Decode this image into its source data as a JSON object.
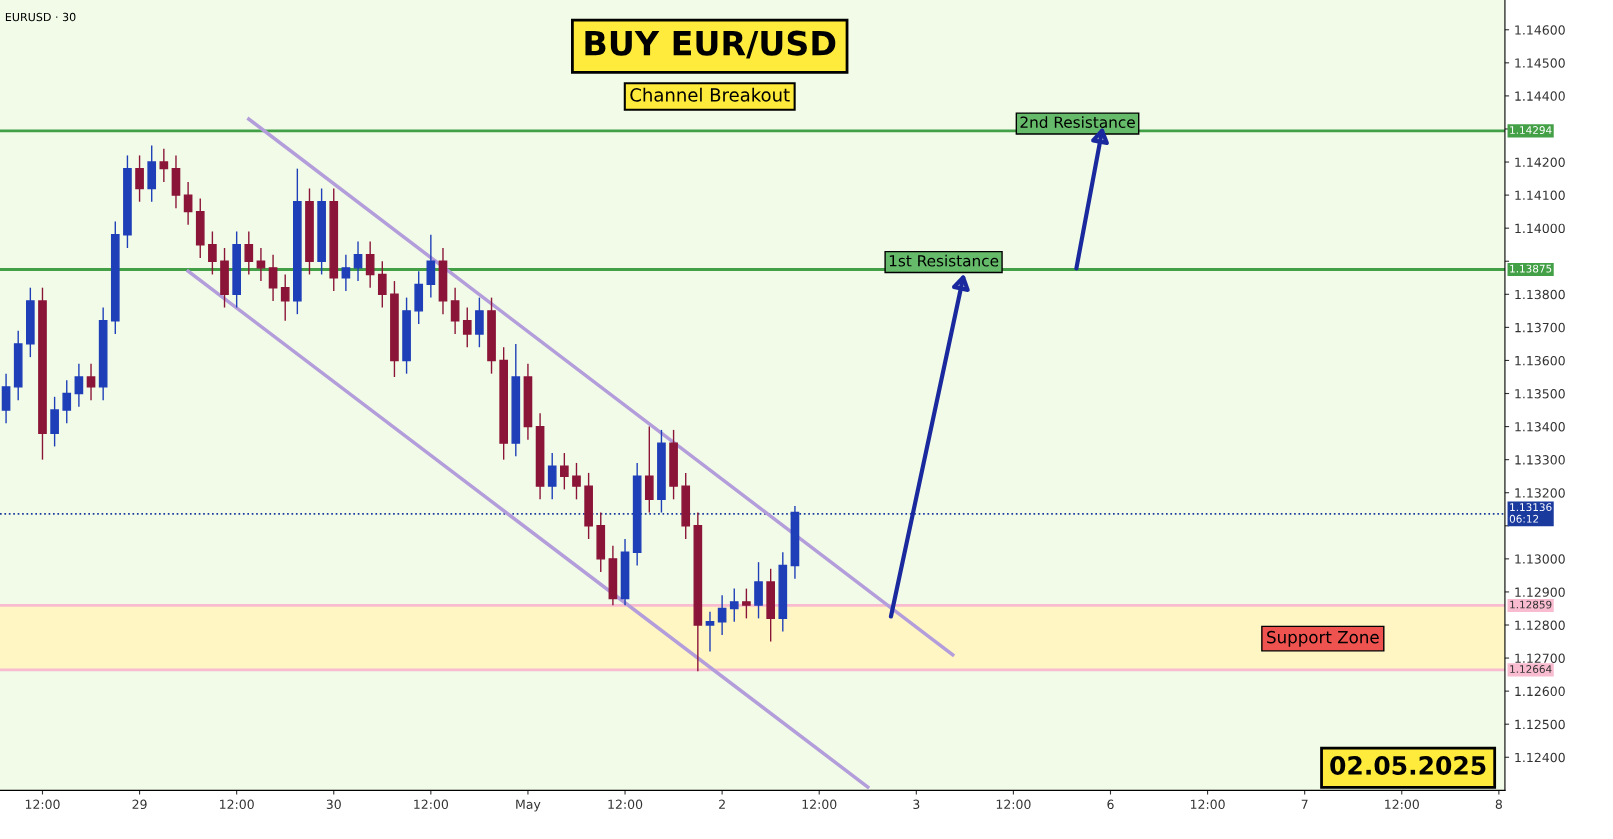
{
  "chart_data": {
    "type": "candlestick",
    "title": "BUY EUR/USD",
    "subtitle": "Channel Breakout",
    "categories": [
      null,
      null,
      null,
      "12:00",
      null,
      null,
      null,
      null,
      null,
      null,
      null,
      "29",
      null,
      null,
      null,
      null,
      null,
      null,
      null,
      "12:00",
      null,
      null,
      null,
      null,
      null,
      null,
      null,
      "30",
      null,
      null,
      null,
      null,
      null,
      null,
      null,
      "12:00",
      null,
      null,
      null,
      null,
      null,
      null,
      null,
      "May",
      null,
      null,
      null,
      null,
      null,
      null,
      null,
      "12:00",
      null,
      null,
      null,
      null,
      null,
      null,
      null,
      "2",
      null,
      null,
      null,
      null,
      null,
      null,
      null,
      "12:00",
      null,
      null,
      null,
      null,
      null,
      null,
      null,
      "3",
      null,
      null,
      null,
      null,
      null,
      null,
      null,
      "12:00",
      null,
      null,
      null,
      null,
      null,
      null,
      null,
      "6",
      null,
      null,
      null,
      null,
      null,
      null,
      null,
      "12:00",
      null,
      null,
      null,
      null,
      null,
      null,
      null,
      "7",
      null,
      null,
      null,
      null,
      null,
      null,
      null,
      "12:00",
      null,
      null,
      null,
      null,
      null,
      null,
      null,
      "8"
    ],
    "ohlc": [
      [
        1.1345,
        1.1356,
        1.1341,
        1.1352
      ],
      [
        1.1352,
        1.1369,
        1.1348,
        1.1365
      ],
      [
        1.1365,
        1.1382,
        1.1361,
        1.1378
      ],
      [
        1.1378,
        1.1382,
        1.133,
        1.1338
      ],
      [
        1.1338,
        1.1349,
        1.1334,
        1.1345
      ],
      [
        1.1345,
        1.1354,
        1.1341,
        1.135
      ],
      [
        1.135,
        1.1359,
        1.1346,
        1.1355
      ],
      [
        1.1355,
        1.1359,
        1.1348,
        1.1352
      ],
      [
        1.1352,
        1.1376,
        1.1348,
        1.1372
      ],
      [
        1.1372,
        1.1402,
        1.1368,
        1.1398
      ],
      [
        1.1398,
        1.1422,
        1.1394,
        1.1418
      ],
      [
        1.1418,
        1.1422,
        1.1408,
        1.1412
      ],
      [
        1.1412,
        1.1425,
        1.1408,
        1.142
      ],
      [
        1.142,
        1.1424,
        1.1414,
        1.1418
      ],
      [
        1.1418,
        1.1422,
        1.1406,
        1.141
      ],
      [
        1.141,
        1.1414,
        1.1401,
        1.1405
      ],
      [
        1.1405,
        1.1409,
        1.1391,
        1.1395
      ],
      [
        1.1395,
        1.1399,
        1.1386,
        1.139
      ],
      [
        1.139,
        1.1394,
        1.1376,
        1.138
      ],
      [
        1.138,
        1.1399,
        1.1376,
        1.1395
      ],
      [
        1.1395,
        1.1399,
        1.1386,
        1.139
      ],
      [
        1.139,
        1.1394,
        1.1384,
        1.1388
      ],
      [
        1.1388,
        1.1392,
        1.1378,
        1.1382
      ],
      [
        1.1382,
        1.1386,
        1.1372,
        1.1378
      ],
      [
        1.1378,
        1.1418,
        1.1374,
        1.1408
      ],
      [
        1.1408,
        1.1412,
        1.1386,
        1.139
      ],
      [
        1.139,
        1.1412,
        1.1386,
        1.1408
      ],
      [
        1.1408,
        1.1412,
        1.1381,
        1.1385
      ],
      [
        1.1385,
        1.1392,
        1.1381,
        1.1388
      ],
      [
        1.1388,
        1.1396,
        1.1384,
        1.1392
      ],
      [
        1.1392,
        1.1396,
        1.1382,
        1.1386
      ],
      [
        1.1386,
        1.139,
        1.1376,
        1.138
      ],
      [
        1.138,
        1.1384,
        1.1355,
        1.136
      ],
      [
        1.136,
        1.1379,
        1.1356,
        1.1375
      ],
      [
        1.1375,
        1.1387,
        1.1371,
        1.1383
      ],
      [
        1.1383,
        1.1398,
        1.1379,
        1.139
      ],
      [
        1.139,
        1.1394,
        1.1374,
        1.1378
      ],
      [
        1.1378,
        1.1382,
        1.1368,
        1.1372
      ],
      [
        1.1372,
        1.1376,
        1.1364,
        1.1368
      ],
      [
        1.1368,
        1.1379,
        1.1364,
        1.1375
      ],
      [
        1.1375,
        1.1379,
        1.1356,
        1.136
      ],
      [
        1.136,
        1.1364,
        1.133,
        1.1335
      ],
      [
        1.1335,
        1.1365,
        1.1331,
        1.1355
      ],
      [
        1.1355,
        1.1359,
        1.1336,
        1.134
      ],
      [
        1.134,
        1.1344,
        1.1318,
        1.1322
      ],
      [
        1.1322,
        1.1332,
        1.1318,
        1.1328
      ],
      [
        1.1328,
        1.1332,
        1.1321,
        1.1325
      ],
      [
        1.1325,
        1.1329,
        1.1318,
        1.1322
      ],
      [
        1.1322,
        1.1326,
        1.1306,
        1.131
      ],
      [
        1.131,
        1.1314,
        1.1296,
        1.13
      ],
      [
        1.13,
        1.1304,
        1.1286,
        1.1288
      ],
      [
        1.1288,
        1.1306,
        1.1286,
        1.1302
      ],
      [
        1.1302,
        1.1329,
        1.1298,
        1.1325
      ],
      [
        1.1325,
        1.134,
        1.1314,
        1.1318
      ],
      [
        1.1318,
        1.1339,
        1.1314,
        1.1335
      ],
      [
        1.1335,
        1.1339,
        1.1318,
        1.1322
      ],
      [
        1.1322,
        1.1326,
        1.1306,
        1.131
      ],
      [
        1.131,
        1.1314,
        1.1266,
        1.128
      ],
      [
        1.128,
        1.1284,
        1.1272,
        1.1281
      ],
      [
        1.1281,
        1.1289,
        1.1277,
        1.1285
      ],
      [
        1.1285,
        1.1291,
        1.1281,
        1.1287
      ],
      [
        1.1287,
        1.1291,
        1.1282,
        1.1286
      ],
      [
        1.1286,
        1.1299,
        1.1282,
        1.1293
      ],
      [
        1.1293,
        1.1297,
        1.1275,
        1.1282
      ],
      [
        1.1282,
        1.1302,
        1.1278,
        1.1298
      ],
      [
        1.1298,
        1.1316,
        1.1294,
        1.1314
      ],
      null,
      null,
      null,
      null,
      null,
      null,
      null,
      null,
      null,
      null,
      null,
      null,
      null,
      null,
      null,
      null,
      null,
      null,
      null,
      null,
      null,
      null,
      null,
      null,
      null,
      null,
      null,
      null,
      null,
      null,
      null,
      null,
      null,
      null,
      null,
      null,
      null,
      null,
      null,
      null,
      null,
      null,
      null,
      null,
      null,
      null,
      null,
      null,
      null,
      null,
      null,
      null,
      null,
      null,
      null,
      null,
      null,
      null
    ],
    "series": [
      {
        "type": "line",
        "color": "#b39ddb",
        "values": [
          null,
          null,
          null,
          null,
          null,
          null,
          null,
          null,
          null,
          null,
          null,
          null,
          null,
          null,
          null,
          null,
          null,
          null,
          null,
          null,
          1.1433,
          null,
          null,
          null,
          null,
          null,
          null,
          null,
          null,
          null,
          null,
          null,
          null,
          null,
          null,
          null,
          null,
          null,
          null,
          null,
          null,
          null,
          null,
          null,
          null,
          null,
          null,
          null,
          null,
          null,
          null,
          null,
          null,
          null,
          null,
          null,
          null,
          null,
          null,
          null,
          null,
          null,
          null,
          null,
          null,
          null,
          null,
          null,
          null,
          null,
          null,
          null,
          null,
          null,
          null,
          null,
          null,
          null,
          1.1271,
          null,
          null,
          null,
          null,
          null,
          null,
          null,
          null,
          null,
          null,
          null,
          null,
          null,
          null,
          null,
          null,
          null,
          null,
          null,
          null,
          null,
          null,
          null,
          null,
          null,
          null,
          null,
          null,
          null,
          null,
          null,
          null,
          null,
          null,
          null,
          null,
          null,
          null,
          null,
          null,
          null,
          null,
          null,
          null,
          null
        ]
      },
      {
        "type": "line",
        "color": "#b39ddb",
        "values": [
          null,
          null,
          null,
          null,
          null,
          null,
          null,
          null,
          null,
          null,
          null,
          null,
          null,
          null,
          null,
          1.1387,
          null,
          null,
          null,
          null,
          null,
          null,
          null,
          null,
          null,
          null,
          null,
          null,
          null,
          null,
          null,
          null,
          null,
          null,
          null,
          null,
          null,
          null,
          null,
          null,
          null,
          null,
          null,
          null,
          null,
          null,
          null,
          null,
          null,
          null,
          null,
          null,
          null,
          null,
          null,
          null,
          null,
          null,
          null,
          null,
          null,
          null,
          null,
          null,
          null,
          null,
          null,
          null,
          null,
          null,
          null,
          1.1231,
          null,
          null,
          null,
          null,
          null,
          null,
          null,
          null,
          null,
          null,
          null,
          null,
          null,
          null,
          null,
          null,
          null,
          null,
          null,
          null,
          null,
          null,
          null,
          null,
          null,
          null,
          null,
          null,
          null,
          null,
          null,
          null,
          null,
          null,
          null,
          null,
          null,
          null,
          null,
          null,
          null,
          null,
          null,
          null,
          null,
          null,
          null,
          null,
          null,
          null,
          null,
          null
        ]
      }
    ],
    "ylim": [
      1.123,
      1.1469
    ],
    "yticks": [
      {
        "value": 1.124,
        "label": "1.12400"
      },
      {
        "value": 1.125,
        "label": "1.12500"
      },
      {
        "value": 1.126,
        "label": "1.12600"
      },
      {
        "value": 1.127,
        "label": "1.12700"
      },
      {
        "value": 1.128,
        "label": "1.12800"
      },
      {
        "value": 1.129,
        "label": "1.12900"
      },
      {
        "value": 1.13,
        "label": "1.13000"
      },
      {
        "value": 1.131,
        "label": null
      },
      {
        "value": 1.132,
        "label": "1.13200"
      },
      {
        "value": 1.133,
        "label": "1.13300"
      },
      {
        "value": 1.134,
        "label": "1.13400"
      },
      {
        "value": 1.135,
        "label": "1.13500"
      },
      {
        "value": 1.136,
        "label": "1.13600"
      },
      {
        "value": 1.137,
        "label": "1.13700"
      },
      {
        "value": 1.138,
        "label": "1.13800"
      },
      {
        "value": 1.139,
        "label": null
      },
      {
        "value": 1.14,
        "label": "1.14000"
      },
      {
        "value": 1.141,
        "label": "1.14100"
      },
      {
        "value": 1.142,
        "label": "1.14200"
      },
      {
        "value": 1.143,
        "label": null
      },
      {
        "value": 1.144,
        "label": "1.14400"
      },
      {
        "value": 1.145,
        "label": "1.14500"
      },
      {
        "value": 1.146,
        "label": "1.14600"
      }
    ],
    "ref_lines": [
      {
        "axis": "y",
        "value": 1.14294,
        "label": "1.14294",
        "color": "#43a047"
      },
      {
        "axis": "y",
        "value": 1.13875,
        "label": "1.13875",
        "color": "#43a047"
      },
      {
        "axis": "y",
        "value": 1.13136,
        "label": "1.13136\n06:12",
        "color": "#1a3a9e",
        "line_style": "dotted"
      },
      {
        "axis": "y",
        "value": 1.12859,
        "label": "1.12859",
        "color": "#f8bbd0"
      },
      {
        "axis": "y",
        "value": 1.12664,
        "label": "1.12664",
        "color": "#f8bbd0"
      }
    ],
    "bands": [
      {
        "axis": "y",
        "from": 1.12664,
        "to": 1.12859,
        "color": "#fff6c4"
      }
    ],
    "annotations": [
      "EURUSD · 30",
      {
        "text": "1st Resistance",
        "y": 1.13875
      },
      {
        "text": "2nd Resistance",
        "y": 1.14294
      },
      "Support Zone",
      "02.05.2025"
    ],
    "grid": false
  }
}
